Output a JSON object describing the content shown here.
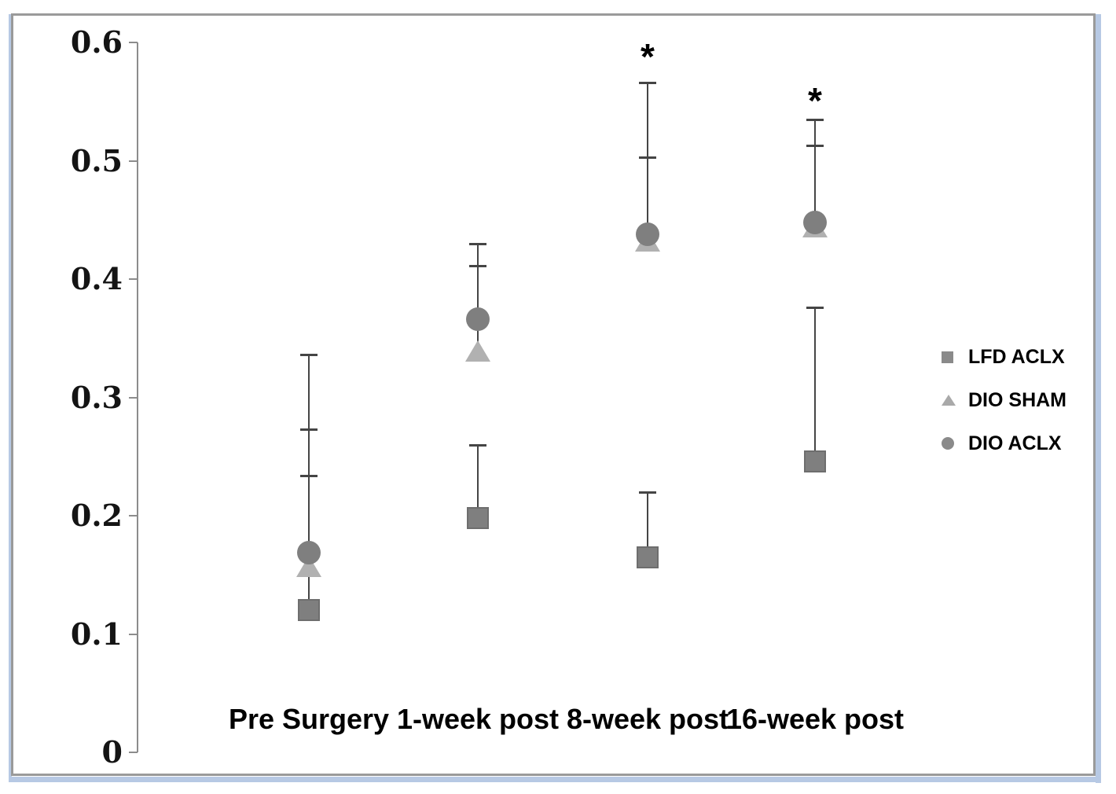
{
  "figure": {
    "border_color": "#9a9a9a",
    "frame_color": "#b7c9e4",
    "background": "#ffffff"
  },
  "chart_data": {
    "type": "scatter",
    "title": "",
    "xlabel": "",
    "ylabel": "",
    "categories": [
      "Pre Surgery",
      "1-week post",
      "8-week post",
      "16-week post"
    ],
    "y_axis": {
      "min": 0,
      "max": 0.6,
      "ticks": [
        {
          "label": "0.6",
          "value": 0.6
        },
        {
          "label": "0.5",
          "value": 0.5
        },
        {
          "label": "0.4",
          "value": 0.4
        },
        {
          "label": "0.3",
          "value": 0.3
        },
        {
          "label": "0.2",
          "value": 0.2
        },
        {
          "label": "0.1",
          "value": 0.1
        },
        {
          "label": "0",
          "value": 0.0
        }
      ]
    },
    "grid": false,
    "error_bars": "upper one-sided",
    "series": [
      {
        "name": "LFD ACLX",
        "marker": "square",
        "color": "#7f7f7f",
        "values": [
          0.12,
          0.198,
          0.165,
          0.246
        ],
        "error_up": [
          0.234,
          0.26,
          0.22,
          0.376
        ]
      },
      {
        "name": "DIO SHAM",
        "marker": "triangle",
        "color": "#b1b1b1",
        "values": [
          0.157,
          0.339,
          0.432,
          0.444
        ],
        "error_up": [
          0.273,
          0.411,
          0.503,
          0.513
        ]
      },
      {
        "name": "DIO ACLX",
        "marker": "circle",
        "color": "#7f7f7f",
        "values": [
          0.169,
          0.366,
          0.438,
          0.448
        ],
        "error_up": [
          0.336,
          0.43,
          0.566,
          0.535
        ]
      }
    ],
    "annotations": [
      {
        "text": "*",
        "category": "8-week post",
        "y": 0.592
      },
      {
        "text": "*",
        "category": "16-week post",
        "y": 0.555
      }
    ],
    "legend": {
      "position": "right",
      "items": [
        {
          "label": "LFD ACLX",
          "marker": "square",
          "color": "#8a8a8a"
        },
        {
          "label": "DIO SHAM",
          "marker": "triangle",
          "color": "#a9a9a9"
        },
        {
          "label": "DIO ACLX",
          "marker": "circle",
          "color": "#8a8a8a"
        }
      ]
    },
    "colors": {
      "axis": "#8c8c8c",
      "error_bar": "#454545",
      "text": "#000000"
    }
  }
}
